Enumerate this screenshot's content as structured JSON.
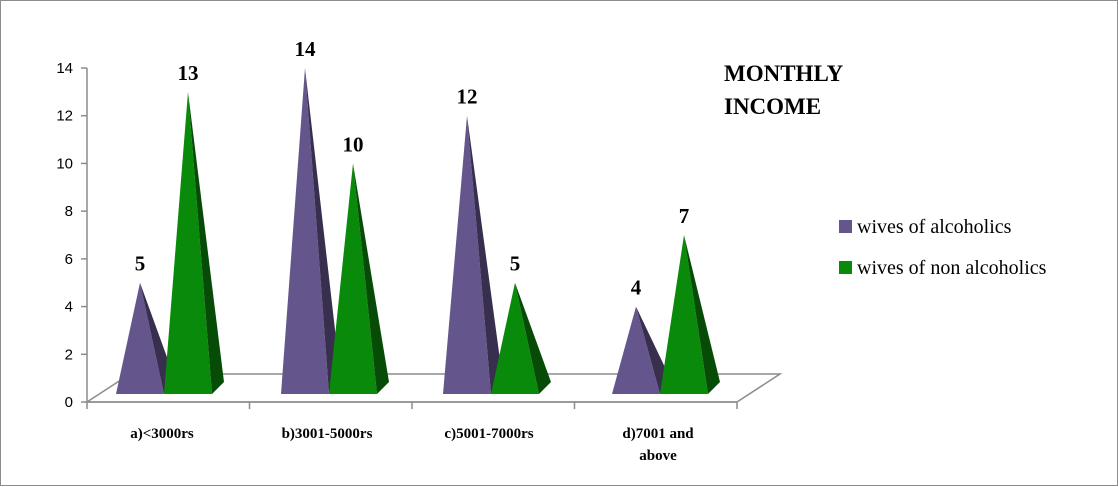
{
  "chart_data": {
    "type": "bar",
    "title": "MONTHLY INCOME",
    "xlabel": "",
    "ylabel": "",
    "ylim": [
      0,
      14
    ],
    "yticks": [
      0,
      2,
      4,
      6,
      8,
      10,
      12,
      14
    ],
    "categories": [
      [
        "a)<3000rs"
      ],
      [
        "b)3001-5000rs"
      ],
      [
        "c)5001-7000rs"
      ],
      [
        "d)7001 and",
        "above"
      ]
    ],
    "series": [
      {
        "name": "wives of alcoholics",
        "values": [
          5,
          14,
          12,
          4
        ],
        "color": "#65558d"
      },
      {
        "name": "wives of non alcoholics",
        "values": [
          13,
          10,
          5,
          7
        ],
        "color": "#0a8a0a"
      }
    ],
    "grid": false,
    "legend_position": "right",
    "bar_shape": "pyramid"
  }
}
